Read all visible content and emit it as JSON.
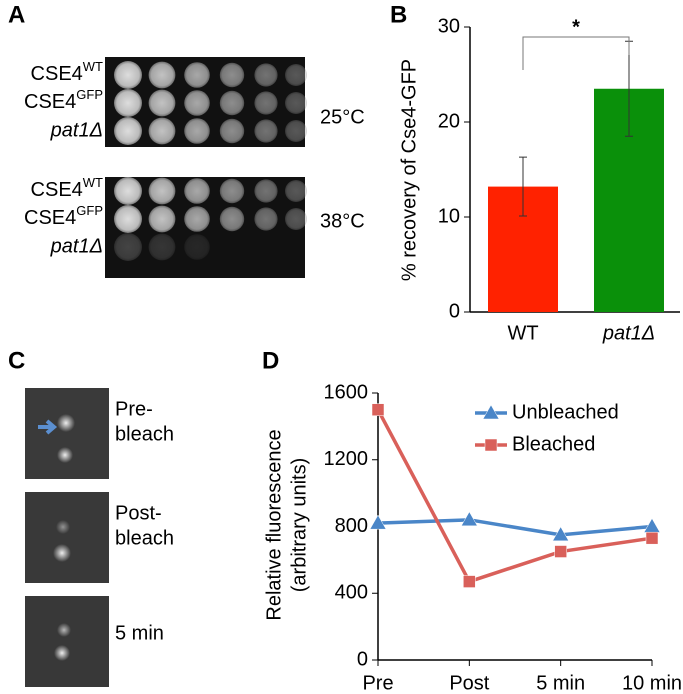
{
  "panel_labels": [
    "A",
    "B",
    "C",
    "D"
  ],
  "panel_a": {
    "strains": [
      {
        "base": "CSE4",
        "sup": "WT"
      },
      {
        "base": "CSE4",
        "sup": "GFP"
      },
      {
        "text": "pat1Δ"
      }
    ],
    "temperatures": [
      "25°C",
      "38°C"
    ]
  },
  "panel_c": {
    "labels": [
      [
        "Pre-",
        "bleach"
      ],
      [
        "Post-",
        "bleach"
      ],
      [
        "5 min"
      ]
    ]
  },
  "chart_data": [
    {
      "type": "bar",
      "ylabel": "% recovery of Cse4-GFP",
      "categories": [
        "WT",
        "pat1Δ"
      ],
      "values": [
        13.2,
        23.5
      ],
      "errors": [
        3.1,
        5.0
      ],
      "colors": [
        "#ff2200",
        "#0a900a"
      ],
      "annotation": "*",
      "ylim": [
        0,
        30
      ],
      "yticks": [
        0,
        10,
        20,
        30
      ]
    },
    {
      "type": "line",
      "ylabel": [
        "Relative fluorescence",
        "(arbitrary units)"
      ],
      "categories": [
        "Pre",
        "Post",
        "5 min",
        "10 min"
      ],
      "series": [
        {
          "name": "Unbleached",
          "color": "#4a86c8",
          "marker": "triangle",
          "values": [
            820,
            840,
            750,
            800
          ]
        },
        {
          "name": "Bleached",
          "color": "#d9605a",
          "marker": "square",
          "values": [
            1500,
            470,
            650,
            730
          ]
        }
      ],
      "ylim": [
        0,
        1600
      ],
      "yticks": [
        0,
        400,
        800,
        1200,
        1600
      ],
      "legend": "upper right"
    }
  ]
}
